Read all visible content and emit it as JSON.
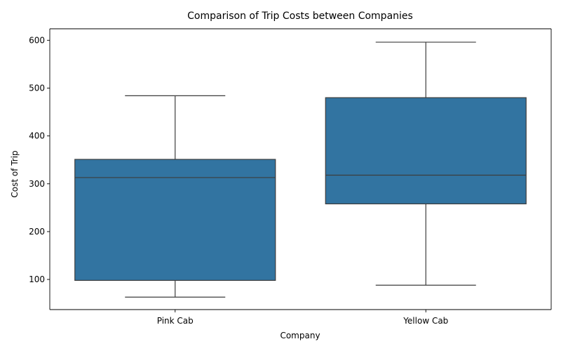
{
  "chart_data": {
    "type": "box",
    "title": "Comparison of Trip Costs between Companies",
    "xlabel": "Company",
    "ylabel": "Cost of Trip",
    "categories": [
      "Pink Cab",
      "Yellow Cab"
    ],
    "boxes": [
      {
        "category": "Pink Cab",
        "whisker_low": 63,
        "q1": 98,
        "median": 313,
        "q3": 351,
        "whisker_high": 484
      },
      {
        "category": "Yellow Cab",
        "whisker_low": 88,
        "q1": 258,
        "median": 318,
        "q3": 480,
        "whisker_high": 596
      }
    ],
    "ylim": [
      37,
      624
    ],
    "yticks": [
      100,
      200,
      300,
      400,
      500,
      600
    ],
    "grid": false,
    "legend": "none",
    "colors": {
      "box_fill": "#3274a1",
      "line": "#3d3d3d"
    }
  }
}
